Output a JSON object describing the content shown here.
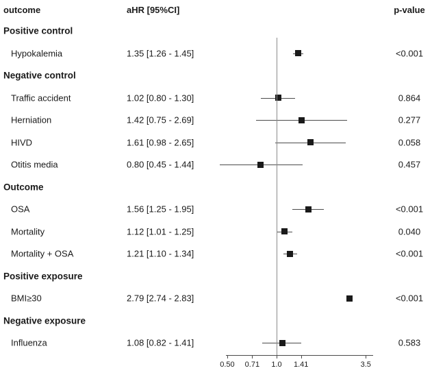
{
  "header": {
    "outcome": "outcome",
    "ahr": "aHR [95%CI]",
    "pvalue": "p-value"
  },
  "colors": {
    "text": "#1a1a1a",
    "marker": "#1a1a1a",
    "ci_line": "#4a4a4a",
    "reference_line": "#8a8a8a",
    "background": "#ffffff"
  },
  "chart_data": {
    "type": "forest",
    "title": "",
    "xlabel": "",
    "ylabel": "",
    "x_scale": "log",
    "x_axis_range": [
      0.49,
      3.9
    ],
    "reference_line": 1.0,
    "x_ticks": [
      0.5,
      0.71,
      1.0,
      1.41,
      3.5
    ],
    "x_tick_labels": [
      "0.50",
      "0.71",
      "1.0",
      "1.41",
      "3.5"
    ],
    "grid": false,
    "legend": false,
    "rows": [
      {
        "kind": "section",
        "label": "Positive control"
      },
      {
        "kind": "item",
        "label": "Hypokalemia",
        "ahr_text": "1.35 [1.26 - 1.45]",
        "estimate": 1.35,
        "ci_low": 1.26,
        "ci_high": 1.45,
        "p_value": "<0.001"
      },
      {
        "kind": "section",
        "label": "Negative control"
      },
      {
        "kind": "item",
        "label": "Traffic accident",
        "ahr_text": "1.02 [0.80 - 1.30]",
        "estimate": 1.02,
        "ci_low": 0.8,
        "ci_high": 1.3,
        "p_value": "0.864"
      },
      {
        "kind": "item",
        "label": "Herniation",
        "ahr_text": "1.42 [0.75 - 2.69]",
        "estimate": 1.42,
        "ci_low": 0.75,
        "ci_high": 2.69,
        "p_value": "0.277"
      },
      {
        "kind": "item",
        "label": "HIVD",
        "ahr_text": "1.61 [0.98 - 2.65]",
        "estimate": 1.61,
        "ci_low": 0.98,
        "ci_high": 2.65,
        "p_value": "0.058"
      },
      {
        "kind": "item",
        "label": "Otitis media",
        "ahr_text": "0.80 [0.45 - 1.44]",
        "estimate": 0.8,
        "ci_low": 0.45,
        "ci_high": 1.44,
        "p_value": "0.457"
      },
      {
        "kind": "section",
        "label": "Outcome"
      },
      {
        "kind": "item",
        "label": "OSA",
        "ahr_text": "1.56 [1.25 - 1.95]",
        "estimate": 1.56,
        "ci_low": 1.25,
        "ci_high": 1.95,
        "p_value": "<0.001"
      },
      {
        "kind": "item",
        "label": "Mortality",
        "ahr_text": "1.12 [1.01 - 1.25]",
        "estimate": 1.12,
        "ci_low": 1.01,
        "ci_high": 1.25,
        "p_value": "0.040"
      },
      {
        "kind": "item",
        "label": "Mortality + OSA",
        "ahr_text": "1.21 [1.10 - 1.34]",
        "estimate": 1.21,
        "ci_low": 1.1,
        "ci_high": 1.34,
        "p_value": "<0.001"
      },
      {
        "kind": "section",
        "label": "Positive exposure"
      },
      {
        "kind": "item",
        "label": "BMI≥30",
        "ahr_text": "2.79 [2.74 - 2.83]",
        "estimate": 2.79,
        "ci_low": 2.74,
        "ci_high": 2.83,
        "p_value": "<0.001"
      },
      {
        "kind": "section",
        "label": "Negative exposure"
      },
      {
        "kind": "item",
        "label": "Influenza",
        "ahr_text": "1.08 [0.82 - 1.41]",
        "estimate": 1.08,
        "ci_low": 0.82,
        "ci_high": 1.41,
        "p_value": "0.583"
      }
    ]
  }
}
